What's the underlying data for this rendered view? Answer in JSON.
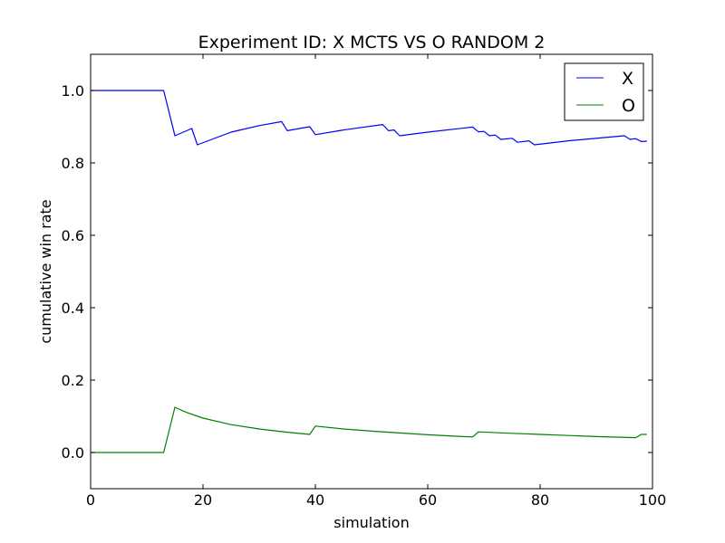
{
  "chart_data": {
    "type": "line",
    "title": "Experiment ID: X MCTS VS O RANDOM 2",
    "xlabel": "simulation",
    "ylabel": "cumulative win rate",
    "xlim": [
      0,
      100
    ],
    "ylim": [
      -0.1,
      1.1
    ],
    "xticks": [
      0,
      20,
      40,
      60,
      80,
      100
    ],
    "yticks": [
      0.0,
      0.2,
      0.4,
      0.6,
      0.8,
      1.0
    ],
    "xtick_labels": [
      "0",
      "20",
      "40",
      "60",
      "80",
      "100"
    ],
    "ytick_labels": [
      "0.0",
      "0.2",
      "0.4",
      "0.6",
      "0.8",
      "1.0"
    ],
    "grid": false,
    "legend_position": "top-right",
    "series": [
      {
        "name": "X",
        "color": "#0000ff",
        "x": [
          0,
          13,
          15,
          18,
          19,
          25,
          30,
          34,
          35,
          39,
          40,
          45,
          52,
          53,
          54,
          55,
          60,
          68,
          69,
          70,
          71,
          72,
          73,
          75,
          76,
          78,
          79,
          85,
          95,
          96,
          97,
          98,
          99
        ],
        "y": [
          1.0,
          1.0,
          0.875,
          0.895,
          0.85,
          0.885,
          0.903,
          0.914,
          0.889,
          0.9,
          0.878,
          0.891,
          0.906,
          0.889,
          0.891,
          0.875,
          0.885,
          0.899,
          0.886,
          0.887,
          0.875,
          0.877,
          0.865,
          0.868,
          0.857,
          0.861,
          0.85,
          0.861,
          0.875,
          0.865,
          0.867,
          0.859,
          0.86
        ]
      },
      {
        "name": "O",
        "color": "#008000",
        "x": [
          0,
          13,
          15,
          17,
          20,
          25,
          30,
          35,
          39,
          40,
          45,
          50,
          55,
          60,
          65,
          68,
          69,
          75,
          80,
          85,
          90,
          97,
          98,
          99
        ],
        "y": [
          0.0,
          0.0,
          0.125,
          0.111,
          0.095,
          0.077,
          0.065,
          0.056,
          0.05,
          0.073,
          0.065,
          0.059,
          0.054,
          0.049,
          0.045,
          0.043,
          0.057,
          0.053,
          0.05,
          0.047,
          0.044,
          0.041,
          0.05,
          0.05
        ]
      }
    ]
  }
}
